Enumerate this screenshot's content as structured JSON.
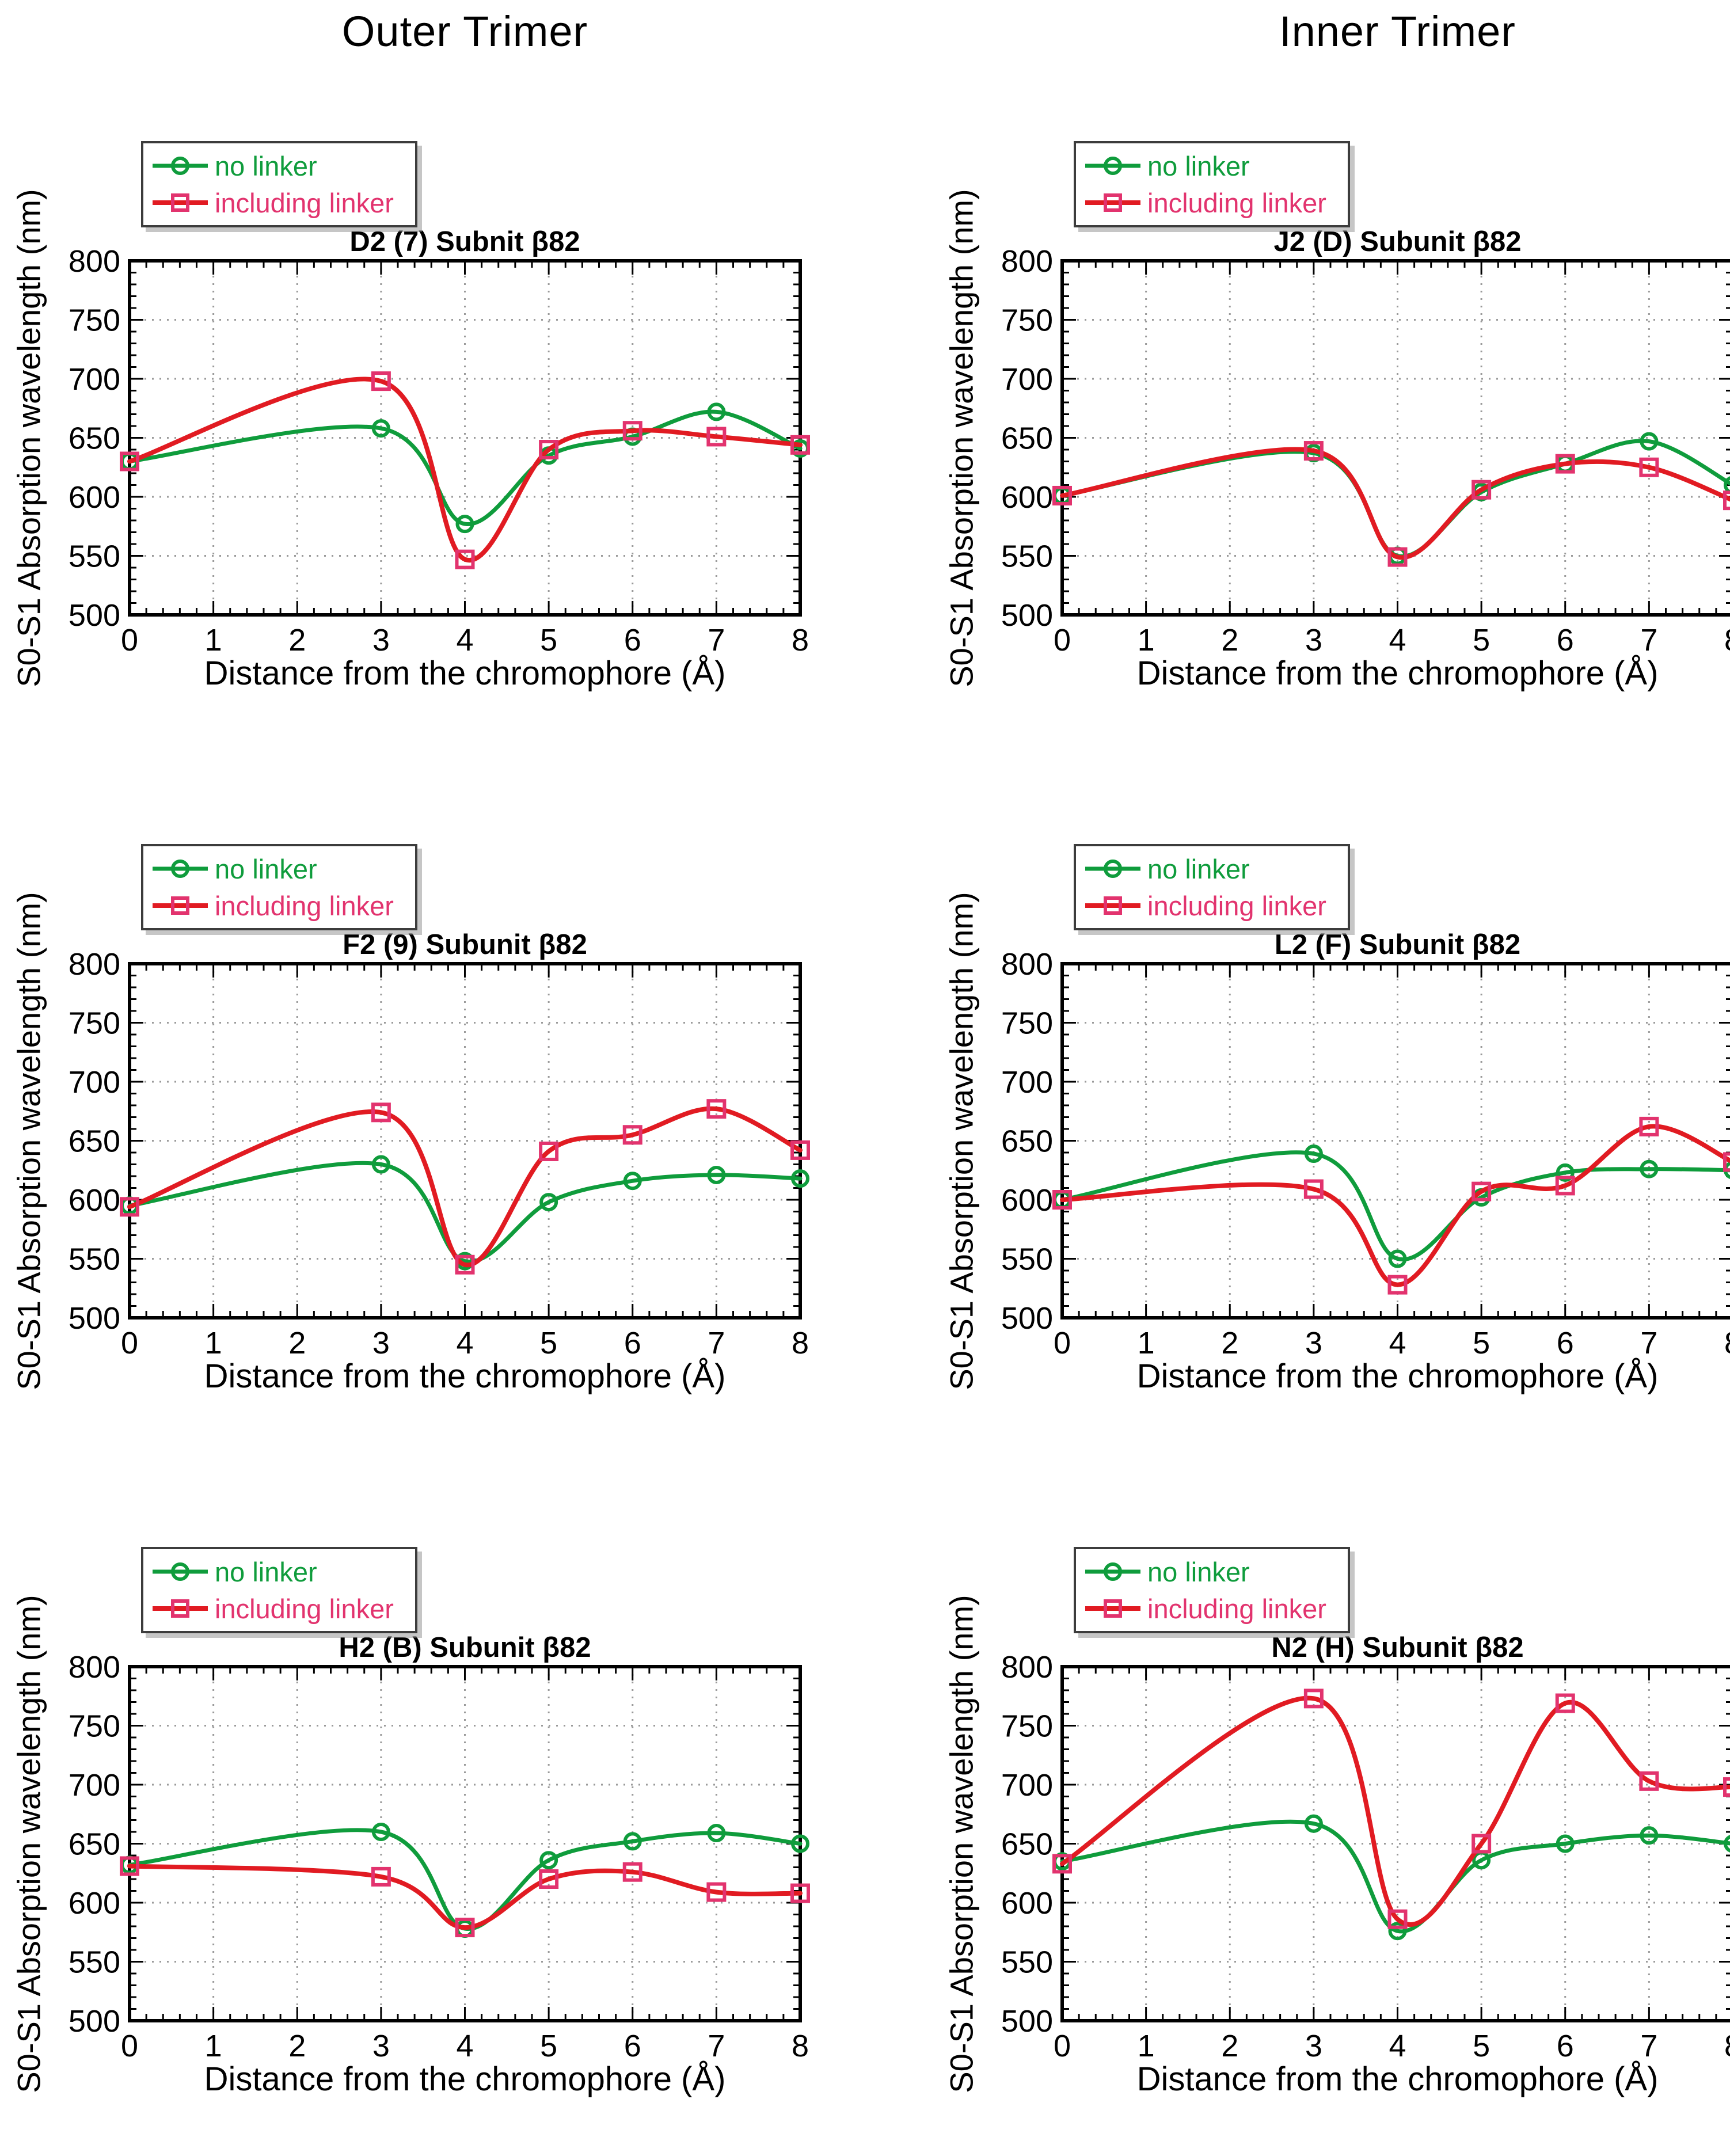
{
  "page": {
    "outer_header": "Outer Trimer",
    "inner_header": "Inner Trimer"
  },
  "legend": {
    "items": [
      {
        "label": "no linker",
        "series": "no_linker"
      },
      {
        "label": "including linker",
        "series": "including_linker"
      }
    ],
    "position": "top-left outside plot"
  },
  "axes": {
    "xlabel": "Distance from the chromophore (Å)",
    "ylabel": "S0-S1 Absorption wavelength (nm)",
    "xlim": [
      0,
      8
    ],
    "ylim": [
      500,
      800
    ],
    "xticks": [
      0,
      1,
      2,
      3,
      4,
      5,
      6,
      7,
      8
    ],
    "yticks": [
      500,
      550,
      600,
      650,
      700,
      750,
      800
    ],
    "x_minor_step": 0.2,
    "y_minor_step": 10,
    "grid": "dotted"
  },
  "colors": {
    "no_linker": "#0f9c3c",
    "including_linker_line": "#e11b22",
    "including_linker_marker": "#e2336e",
    "grid": "#9a9a9a",
    "frame": "#000000",
    "text": "#000000"
  },
  "chart_data": [
    {
      "type": "line",
      "column": "Outer Trimer",
      "title": "D2 (7) Subnit β82",
      "xlabel": "Distance from the chromophore (Å)",
      "ylabel": "S0-S1 Absorption wavelength (nm)",
      "xlim": [
        0,
        8
      ],
      "ylim": [
        500,
        800
      ],
      "x": [
        0,
        3,
        4,
        5,
        6,
        7,
        8
      ],
      "series": [
        {
          "name": "no linker",
          "values": [
            630,
            658,
            577,
            635,
            651,
            672,
            641
          ]
        },
        {
          "name": "including linker",
          "values": [
            630,
            698,
            547,
            640,
            656,
            651,
            644
          ]
        }
      ]
    },
    {
      "type": "line",
      "column": "Inner Trimer",
      "title": "J2 (D) Subunit β82",
      "xlabel": "Distance from the chromophore (Å)",
      "ylabel": "S0-S1 Absorption wavelength (nm)",
      "xlim": [
        0,
        8
      ],
      "ylim": [
        500,
        800
      ],
      "x": [
        0,
        3,
        4,
        5,
        6,
        7,
        8
      ],
      "series": [
        {
          "name": "no linker",
          "values": [
            601,
            637,
            550,
            604,
            628,
            647,
            610
          ]
        },
        {
          "name": "including linker",
          "values": [
            601,
            639,
            549,
            606,
            628,
            625,
            597
          ]
        }
      ]
    },
    {
      "type": "line",
      "column": "Outer Trimer",
      "title": "F2 (9) Subunit β82",
      "xlabel": "Distance from the chromophore (Å)",
      "ylabel": "S0-S1 Absorption wavelength (nm)",
      "xlim": [
        0,
        8
      ],
      "ylim": [
        500,
        800
      ],
      "x": [
        0,
        3,
        4,
        5,
        6,
        7,
        8
      ],
      "series": [
        {
          "name": "no linker",
          "values": [
            595,
            630,
            548,
            598,
            616,
            621,
            618
          ]
        },
        {
          "name": "including linker",
          "values": [
            594,
            674,
            545,
            641,
            655,
            677,
            642
          ]
        }
      ]
    },
    {
      "type": "line",
      "column": "Inner Trimer",
      "title": "L2 (F) Subunit β82",
      "xlabel": "Distance from the chromophore (Å)",
      "ylabel": "S0-S1 Absorption wavelength (nm)",
      "xlim": [
        0,
        8
      ],
      "ylim": [
        500,
        800
      ],
      "x": [
        0,
        3,
        4,
        5,
        6,
        7,
        8
      ],
      "series": [
        {
          "name": "no linker",
          "values": [
            600,
            639,
            550,
            602,
            623,
            626,
            625
          ]
        },
        {
          "name": "including linker",
          "values": [
            600,
            609,
            528,
            607,
            612,
            662,
            632
          ]
        }
      ]
    },
    {
      "type": "line",
      "column": "Outer Trimer",
      "title": "H2 (B) Subunit β82",
      "xlabel": "Distance from the chromophore (Å)",
      "ylabel": "S0-S1 Absorption wavelength (nm)",
      "xlim": [
        0,
        8
      ],
      "ylim": [
        500,
        800
      ],
      "x": [
        0,
        3,
        4,
        5,
        6,
        7,
        8
      ],
      "series": [
        {
          "name": "no linker",
          "values": [
            632,
            660,
            578,
            636,
            652,
            659,
            650
          ]
        },
        {
          "name": "including linker",
          "values": [
            631,
            622,
            579,
            620,
            626,
            609,
            608
          ]
        }
      ]
    },
    {
      "type": "line",
      "column": "Inner Trimer",
      "title": "N2 (H) Subunit β82",
      "xlabel": "Distance from the chromophore (Å)",
      "ylabel": "S0-S1 Absorption wavelength (nm)",
      "xlim": [
        0,
        8
      ],
      "ylim": [
        500,
        800
      ],
      "x": [
        0,
        3,
        4,
        5,
        6,
        7,
        8
      ],
      "series": [
        {
          "name": "no linker",
          "values": [
            635,
            667,
            576,
            636,
            650,
            657,
            650
          ]
        },
        {
          "name": "including linker",
          "values": [
            633,
            773,
            586,
            650,
            769,
            703,
            698
          ]
        }
      ]
    }
  ]
}
